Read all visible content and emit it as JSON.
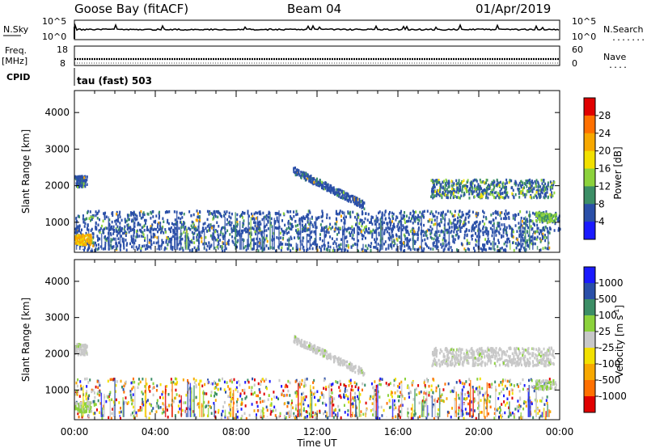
{
  "header": {
    "station": "Goose Bay (fitACF)",
    "beam": "Beam 04",
    "date": "01/Apr/2019"
  },
  "noise_panel": {
    "left_label": "N.Sky",
    "left_ticks": [
      "10^5",
      "10^0"
    ],
    "right_label": "N.Search",
    "right_ticks": [
      "10^5",
      "10^0"
    ],
    "right_dots": "......."
  },
  "freq_panel": {
    "left_label_1": "Freq.",
    "left_label_2": "[MHz]",
    "left_ticks": [
      "18",
      "8"
    ],
    "right_label": "Nave",
    "right_ticks": [
      "60",
      "0"
    ],
    "right_dots": "...."
  },
  "cpid_label": "CPID",
  "cpid_text": "tau (fast) 503",
  "x_ticks": [
    "00:00",
    "04:00",
    "08:00",
    "12:00",
    "16:00",
    "20:00",
    "00:00"
  ],
  "x_label": "Time UT",
  "chart_data": [
    {
      "type": "heatmap",
      "name": "power",
      "ylabel": "Slant Range [km]",
      "ylim": [
        180,
        4600
      ],
      "y_ticks": [
        "4000",
        "3000",
        "2000",
        "1000"
      ],
      "xlim_hours": [
        0,
        24
      ],
      "colorbar_label": "Power [dB]",
      "colorbar_ticks": [
        "28",
        "24",
        "20",
        "16",
        "12",
        "8",
        "4"
      ],
      "colorbar_colors": [
        "#e00000",
        "#ff7000",
        "#f7a800",
        "#f2e000",
        "#8cd23c",
        "#3c8e66",
        "#2a4fa8",
        "#1a1aff"
      ],
      "features": [
        {
          "region": "dense scatter 800-1300 km",
          "t": [
            0,
            24
          ],
          "r": [
            750,
            1350
          ],
          "value_db": 6
        },
        {
          "region": "near-range clutter",
          "t": [
            0,
            23.5
          ],
          "r": [
            250,
            900
          ],
          "value_db": 8
        },
        {
          "region": "early morning echo",
          "t": [
            0,
            0.8
          ],
          "r": [
            420,
            700
          ],
          "value_db": 18
        },
        {
          "region": "early echo 2100 km",
          "t": [
            0,
            0.6
          ],
          "r": [
            2000,
            2300
          ],
          "value_db": 8
        },
        {
          "region": "descending arc",
          "t": [
            10.8,
            14.3
          ],
          "r": [
            2450,
            1500
          ],
          "value_db": 8
        },
        {
          "region": "late band 1800-2200 km",
          "t": [
            17.6,
            23.7
          ],
          "r": [
            1700,
            2200
          ],
          "value_db": 10
        },
        {
          "region": "late near echo",
          "t": [
            22.8,
            23.8
          ],
          "r": [
            1050,
            1300
          ],
          "value_db": 16
        }
      ]
    },
    {
      "type": "heatmap",
      "name": "velocity",
      "ylabel": "Slant Range [km]",
      "ylim": [
        180,
        4600
      ],
      "y_ticks": [
        "4000",
        "3000",
        "2000",
        "1000"
      ],
      "xlim_hours": [
        0,
        24
      ],
      "colorbar_label": "Velocity [m s^-1]",
      "colorbar_ticks": [
        "1000",
        "500",
        "100",
        "25",
        "-25",
        "-100",
        "-500",
        "-1000"
      ],
      "colorbar_colors": [
        "#1a1aff",
        "#2a4fa8",
        "#3c8e66",
        "#8cd23c",
        "#c8c8c8",
        "#f2e000",
        "#f7a800",
        "#ff7000",
        "#e00000"
      ],
      "features": [
        {
          "region": "ground scatter bands",
          "t": [
            10.8,
            23.7
          ],
          "r": [
            1500,
            2450
          ],
          "value_ms": 0
        },
        {
          "region": "near-range mixed velocity",
          "t": [
            0,
            23.5
          ],
          "r": [
            250,
            1350
          ],
          "value_ms": 0
        }
      ]
    }
  ],
  "colors": {
    "frame": "#000000",
    "background": "#ffffff"
  }
}
